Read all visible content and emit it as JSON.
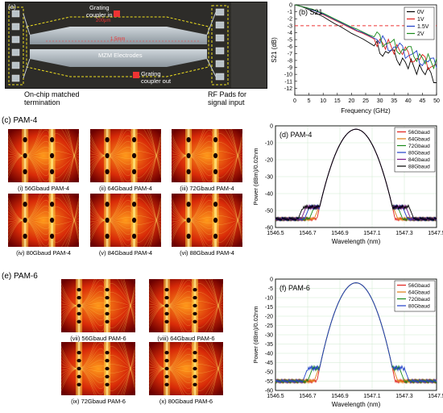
{
  "panel_a": {
    "label": "(a)",
    "grating_in": "Grating\ncoupler in",
    "mzm": "MZM Electrodes",
    "grating_out": "Grating\ncoupler out",
    "termination": "On-chip matched\ntermination",
    "rf_pads": "RF Pads for\nsignal input",
    "scale_1": "1.5mm",
    "scale_2": "200μm"
  },
  "section_c": "(c) PAM-4",
  "section_e": "(e) PAM-6",
  "eyes_pam4": [
    "(i) 56Gbaud PAM-4",
    "(ii) 64Gbaud PAM-4",
    "(iii) 72Gbaud PAM-4",
    "(iv) 80Gbaud PAM-4",
    "(v) 84Gbaud PAM-4",
    "(vi) 88Gbaud PAM-4"
  ],
  "eyes_pam6": [
    "(vii) 56Gbaud PAM-6",
    "(viii) 64Gbaud PAM-6",
    "(ix) 72Gbaud PAM-6",
    "(x) 80Gbaud PAM-6"
  ],
  "colors": {
    "accent_red": "#e33",
    "eye_hot": "#ffd24a",
    "eye_dark": "#5a0000"
  },
  "chart_data": [
    {
      "id": "b",
      "type": "line",
      "title": "(b) S21",
      "xlabel": "Frequency (GHz)",
      "ylabel": "S21 (dB)",
      "xlim": [
        0,
        50
      ],
      "ylim": [
        -13,
        0
      ],
      "xticks": [
        "0",
        "5",
        "10",
        "15",
        "20",
        "25",
        "30",
        "35",
        "40",
        "45",
        "50"
      ],
      "yticks": [
        "0",
        "-1",
        "-2",
        "-3",
        "-4",
        "-5",
        "-6",
        "-7",
        "-8",
        "-9",
        "-10",
        "-11",
        "-12"
      ],
      "reference_line": {
        "y": -3,
        "color": "#e33",
        "style": "dashed"
      },
      "legend": "top-right",
      "x": [
        0,
        2,
        4,
        6,
        8,
        10,
        12,
        14,
        16,
        18,
        20,
        22,
        24,
        26,
        28,
        30,
        32,
        34,
        36,
        38,
        40,
        42,
        44,
        46,
        48,
        50
      ],
      "series": [
        {
          "name": "0V",
          "color": "#000000",
          "values": [
            0,
            -0.2,
            -0.5,
            -0.9,
            -1.3,
            -1.7,
            -2.2,
            -2.7,
            -3.1,
            -3.6,
            -4.1,
            -4.5,
            -4.9,
            -5.4,
            -5.9,
            -6.3,
            -6.7,
            -7.2,
            -7.6,
            -8.0,
            -8.5,
            -8.9,
            -9.3,
            -9.7,
            -10.1,
            -10.5
          ]
        },
        {
          "name": "1V",
          "color": "#e0201a",
          "values": [
            0,
            -0.2,
            -0.4,
            -0.7,
            -1.0,
            -1.4,
            -1.8,
            -2.2,
            -2.6,
            -3.0,
            -3.4,
            -3.8,
            -4.1,
            -4.5,
            -4.9,
            -5.3,
            -5.7,
            -6.0,
            -6.4,
            -6.8,
            -7.1,
            -7.5,
            -7.9,
            -8.2,
            -8.6,
            -8.9
          ]
        },
        {
          "name": "1.5V",
          "color": "#1f3fc8",
          "values": [
            0,
            -0.2,
            -0.4,
            -0.7,
            -1.0,
            -1.3,
            -1.7,
            -2.1,
            -2.5,
            -2.9,
            -3.3,
            -3.7,
            -4.0,
            -4.4,
            -4.8,
            -5.2,
            -5.5,
            -5.9,
            -6.2,
            -6.6,
            -7.0,
            -7.3,
            -7.7,
            -8.0,
            -8.4,
            -8.7
          ]
        },
        {
          "name": "2V",
          "color": "#1a8a1a",
          "values": [
            0,
            -0.2,
            -0.4,
            -0.6,
            -0.9,
            -1.2,
            -1.6,
            -2.0,
            -2.4,
            -2.8,
            -3.2,
            -3.5,
            -3.9,
            -4.3,
            -4.6,
            -5.0,
            -5.3,
            -5.7,
            -6.0,
            -6.4,
            -6.7,
            -7.1,
            -7.4,
            -7.8,
            -8.1,
            -8.4
          ]
        }
      ]
    },
    {
      "id": "d",
      "type": "line",
      "title": "(d) PAM-4",
      "xlabel": "Wavelength (nm)",
      "ylabel": "Power (dBm)/0.02nm",
      "xlim": [
        1546.5,
        1547.5
      ],
      "ylim": [
        -60,
        0
      ],
      "xticks": [
        "1546.5",
        "1546.7",
        "1546.9",
        "1547.1",
        "1547.3",
        "1547.5"
      ],
      "yticks": [
        "0",
        "-10",
        "-20",
        "-30",
        "-40",
        "-50",
        "-60"
      ],
      "legend": "top-right",
      "peak": 1547.0,
      "series": [
        {
          "name": "56Gbaud",
          "color": "#e0201a",
          "edge_left": 1546.8,
          "edge_right": 1547.2,
          "values_note": "plateau -48 dBm, floor -55 dBm, peak -2 dBm"
        },
        {
          "name": "64Gbaud",
          "color": "#e07a10",
          "edge_left": 1546.77,
          "edge_right": 1547.23
        },
        {
          "name": "72Gbaud",
          "color": "#1a8a1a",
          "edge_left": 1546.74,
          "edge_right": 1547.26
        },
        {
          "name": "80Gbaud",
          "color": "#1f3fc8",
          "edge_left": 1546.71,
          "edge_right": 1547.29
        },
        {
          "name": "84Gbaud",
          "color": "#7a1a8a",
          "edge_left": 1546.69,
          "edge_right": 1547.31
        },
        {
          "name": "88Gbaud",
          "color": "#000000",
          "edge_left": 1546.67,
          "edge_right": 1547.33
        }
      ]
    },
    {
      "id": "f",
      "type": "line",
      "title": "(f) PAM-6",
      "xlabel": "Wavelength (nm)",
      "ylabel": "Power (dBm)/0.02nm",
      "xlim": [
        1546.5,
        1547.5
      ],
      "ylim": [
        -60,
        0
      ],
      "xticks": [
        "1546.5",
        "1546.7",
        "1546.9",
        "1547.1",
        "1547.3",
        "1547.5"
      ],
      "yticks": [
        "0",
        "-5",
        "-10",
        "-15",
        "-20",
        "-25",
        "-30",
        "-35",
        "-40",
        "-45",
        "-50",
        "-55",
        "-60"
      ],
      "legend": "top-right",
      "peak": 1547.0,
      "series": [
        {
          "name": "56Gbaud",
          "color": "#e0201a",
          "edge_left": 1546.8,
          "edge_right": 1547.2
        },
        {
          "name": "64Gbaud",
          "color": "#e07a10",
          "edge_left": 1546.77,
          "edge_right": 1547.23
        },
        {
          "name": "72Gbaud",
          "color": "#1a8a1a",
          "edge_left": 1546.73,
          "edge_right": 1547.27
        },
        {
          "name": "80Gbaud",
          "color": "#1f3fc8",
          "edge_left": 1546.7,
          "edge_right": 1547.3
        }
      ]
    }
  ]
}
